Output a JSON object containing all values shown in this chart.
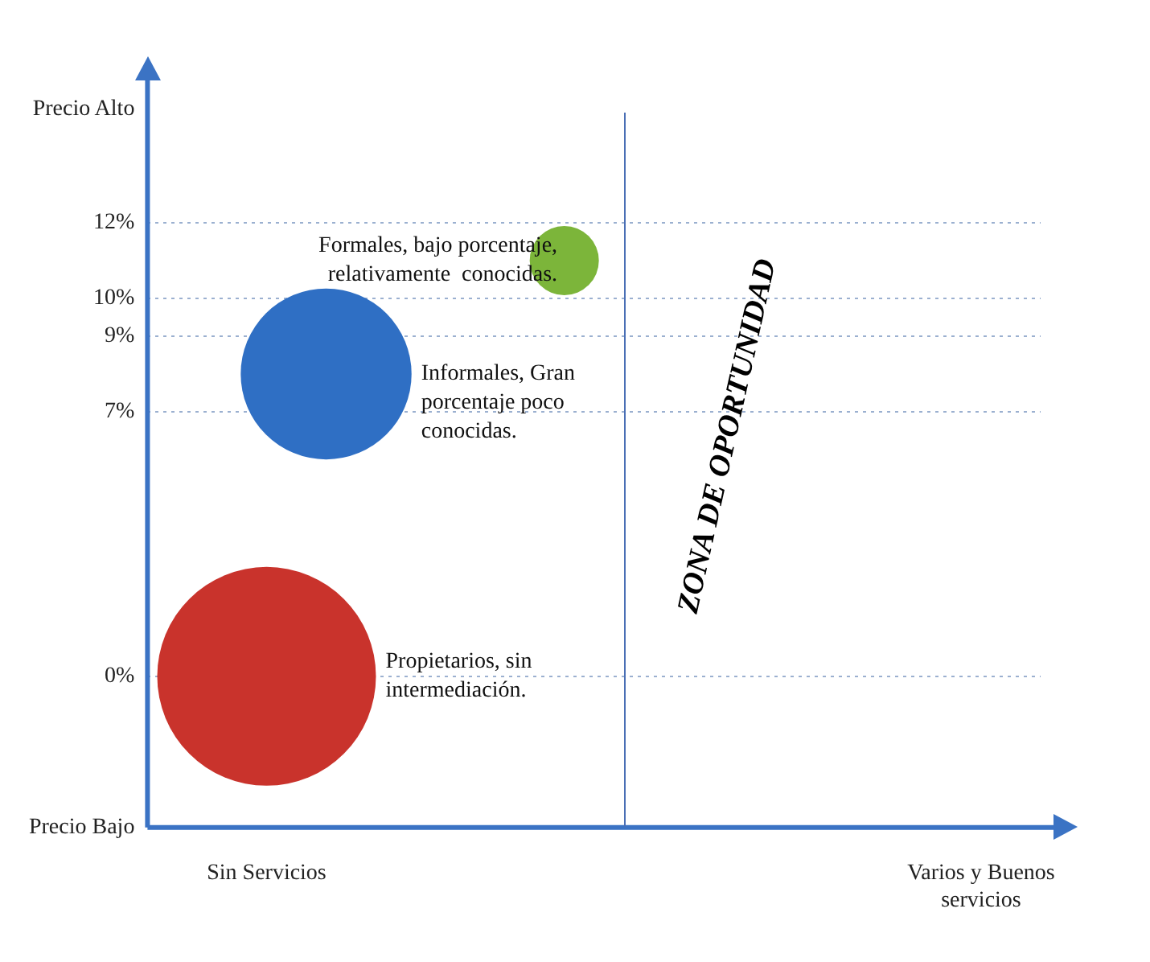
{
  "chart_data": {
    "type": "bubble",
    "categories": [
      null,
      null,
      "Sin Servicios",
      null,
      null,
      null,
      null,
      null,
      null,
      null,
      null,
      null,
      null,
      null,
      "Varios y Buenos servicios",
      null
    ],
    "series": [
      {
        "values": [
          null,
          null,
          0,
          8,
          null,
          null,
          null,
          11,
          null,
          null,
          null,
          null,
          null,
          null,
          null,
          null
        ],
        "sizes": [
          null,
          null,
          1,
          0.61,
          null,
          null,
          null,
          0.1,
          null,
          null,
          null,
          null,
          null,
          null,
          null,
          null
        ],
        "colors": [
          null,
          null,
          "#c9332c",
          "#2f6fc4",
          null,
          null,
          null,
          "#7cb53a",
          null,
          null,
          null,
          null,
          null,
          null,
          null,
          null
        ]
      }
    ],
    "ylim": [
      -4,
      15
    ],
    "yticks": [
      {
        "value": -4,
        "label": "Precio Bajo"
      },
      {
        "value": 0,
        "label": "0%"
      },
      {
        "value": 7,
        "label": "7%"
      },
      {
        "value": 9,
        "label": "9%"
      },
      {
        "value": 10,
        "label": "10%"
      },
      {
        "value": 12,
        "label": "12%"
      },
      {
        "value": 15,
        "label": "Precio Alto"
      }
    ],
    "grid": "y",
    "annotations": [
      "Propietarios, sin intermediación.",
      "Informales, Gran porcentaje poco conocidas.",
      "Formales, bajo porcentaje, relativamente  conocidas.",
      "ZONA DE OPORTUNIDAD"
    ]
  }
}
